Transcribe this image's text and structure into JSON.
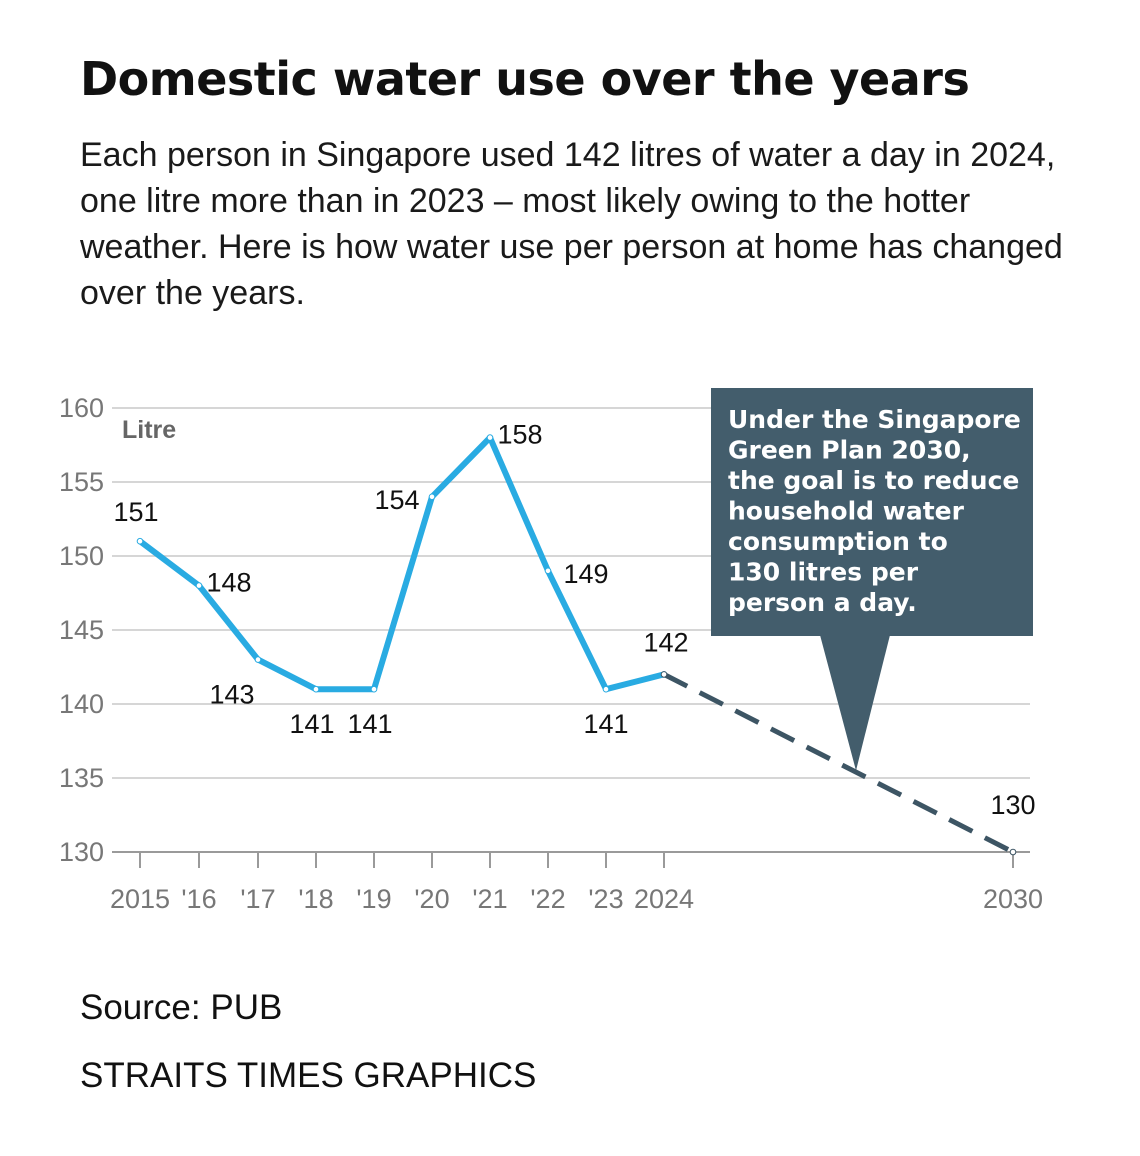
{
  "title": "Domestic water use over the years",
  "subtitle": "Each person in Singapore used 142 litres of water a day in 2024, one litre more than in 2023 – most likely owing to the hotter weather. Here is how water use per person at home has changed over the years.",
  "source": "Source: PUB",
  "credit": "STRAITS TIMES GRAPHICS",
  "colors": {
    "actual": "#29abe2",
    "target": "#3d5564",
    "callout_bg": "#435d6c",
    "grid": "#c8c8c8"
  },
  "chart_data": {
    "type": "line",
    "title": "",
    "xlabel": "",
    "ylabel": "Litre",
    "ylim": [
      130,
      160
    ],
    "yticks": [
      160,
      155,
      150,
      145,
      140,
      135,
      130
    ],
    "grid": true,
    "series": [
      {
        "style": "solid",
        "x": [
          2015,
          2016,
          2017,
          2018,
          2019,
          2020,
          2021,
          2022,
          2023,
          2024
        ],
        "values": [
          151,
          148,
          143,
          141,
          141,
          154,
          158,
          149,
          141,
          142
        ],
        "labels": [
          "151",
          "148",
          "143",
          "141",
          "141",
          "154",
          "158",
          "149",
          "141",
          "142"
        ]
      },
      {
        "style": "dashed",
        "x": [
          2024,
          2030
        ],
        "values": [
          142,
          130
        ],
        "labels": [
          "",
          "130"
        ]
      }
    ],
    "x_ticks": [
      {
        "x": 2015,
        "label": "2015"
      },
      {
        "x": 2016,
        "label": "'16"
      },
      {
        "x": 2017,
        "label": "'17"
      },
      {
        "x": 2018,
        "label": "'18"
      },
      {
        "x": 2019,
        "label": "'19"
      },
      {
        "x": 2020,
        "label": "'20"
      },
      {
        "x": 2021,
        "label": "'21"
      },
      {
        "x": 2022,
        "label": "'22"
      },
      {
        "x": 2023,
        "label": "'23"
      },
      {
        "x": 2024,
        "label": "2024"
      },
      {
        "x": 2030,
        "label": "2030"
      }
    ],
    "annotation": {
      "lines": [
        "Under the Singapore",
        "Green Plan 2030,",
        "the goal is to reduce",
        "household water",
        "consumption to",
        "130 litres per",
        "person a day."
      ]
    }
  }
}
